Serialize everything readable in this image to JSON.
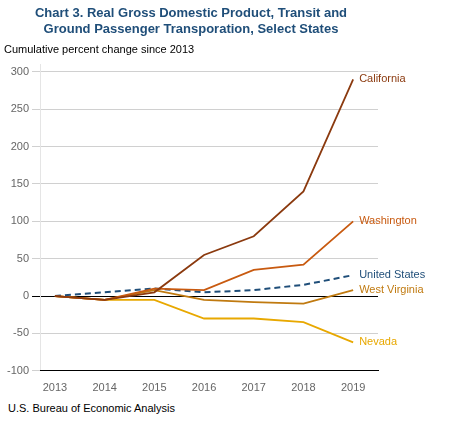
{
  "chart_data": {
    "type": "line",
    "title": [
      "Chart 3. Real Gross Domestic Product, Transit and",
      "Ground Passenger Transporation, Select States"
    ],
    "subtitle": "Cumulative percent change since 2013",
    "annotations": [
      "U.S. Bureau of Economic Analysis"
    ],
    "x": [
      2013,
      2014,
      2015,
      2016,
      2017,
      2018,
      2019
    ],
    "series": [
      {
        "name": "California",
        "color": "#8B3A0F",
        "line_style": "solid",
        "values": [
          0,
          -5,
          5,
          55,
          80,
          140,
          290
        ]
      },
      {
        "name": "Washington",
        "color": "#C85A10",
        "line_style": "solid",
        "values": [
          0,
          -5,
          10,
          8,
          35,
          42,
          100
        ]
      },
      {
        "name": "United States",
        "color": "#1F4E79",
        "line_style": "dashed",
        "values": [
          0,
          5,
          10,
          5,
          8,
          15,
          28
        ]
      },
      {
        "name": "West Virginia",
        "color": "#C07A10",
        "line_style": "solid",
        "values": [
          0,
          -5,
          8,
          -5,
          -8,
          -10,
          8
        ]
      },
      {
        "name": "Nevada",
        "color": "#E8A800",
        "line_style": "solid",
        "values": [
          0,
          -5,
          -5,
          -30,
          -30,
          -35,
          -62
        ]
      }
    ],
    "xlim": [
      2012.7,
      2019.5
    ],
    "xticks": [
      2013,
      2014,
      2015,
      2016,
      2017,
      2018,
      2019
    ],
    "ylim": [
      -100,
      310
    ],
    "yticks": [
      -100,
      -50,
      0,
      50,
      100,
      150,
      200,
      250,
      300
    ],
    "grid": true
  }
}
